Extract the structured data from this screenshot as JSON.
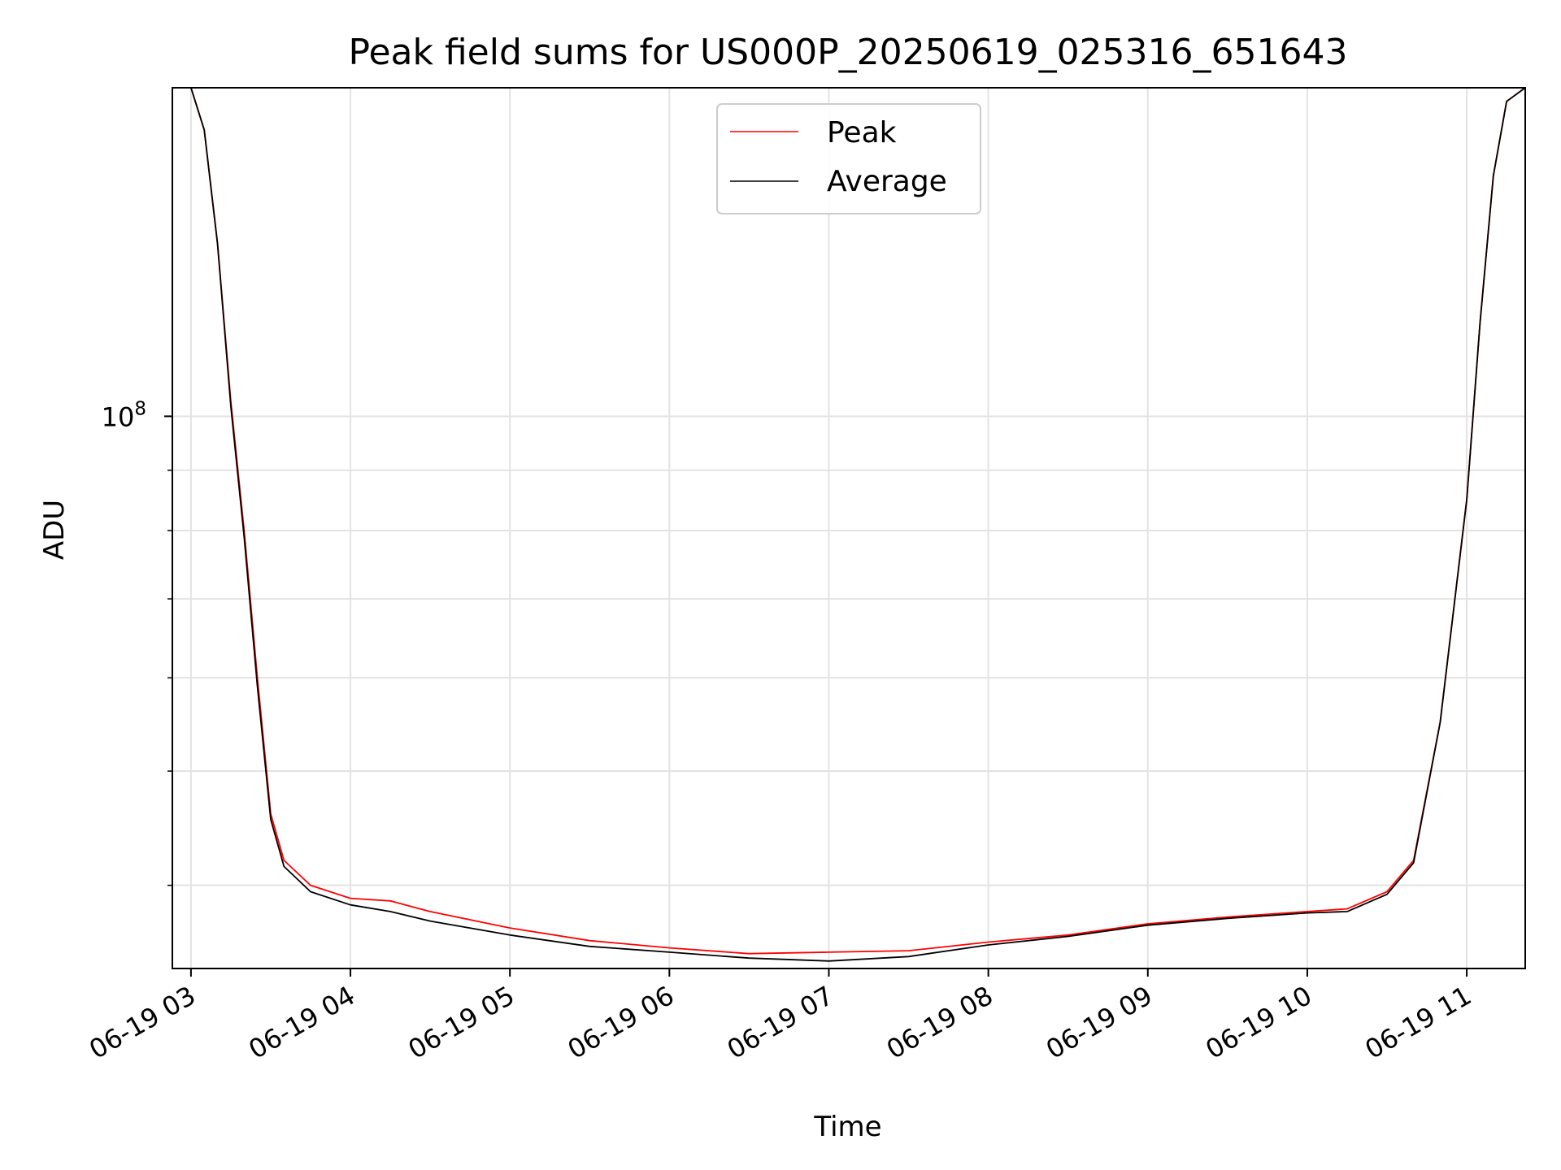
{
  "chart_data": {
    "type": "line",
    "title": "Peak field sums for US000P_20250619_025316_651643",
    "xlabel": "Time",
    "ylabel": "ADU",
    "y_scale": "log",
    "grid": true,
    "legend_position": "upper center",
    "xlim": [
      "2025-06-19 02:53",
      "2025-06-19 11:22"
    ],
    "ylim": [
      34000000,
      190000000
    ],
    "x_ticks": [
      "06-19 03",
      "06-19 04",
      "06-19 05",
      "06-19 06",
      "06-19 07",
      "06-19 08",
      "06-19 09",
      "06-19 10",
      "06-19 11"
    ],
    "y_tick_label": {
      "base": "10",
      "exponent": "8"
    },
    "series": [
      {
        "name": "Peak",
        "color": "#ff0000",
        "x": [
          "2025-06-19 02:53",
          "2025-06-19 03:00",
          "2025-06-19 03:05",
          "2025-06-19 03:10",
          "2025-06-19 03:15",
          "2025-06-19 03:20",
          "2025-06-19 03:25",
          "2025-06-19 03:30",
          "2025-06-19 03:35",
          "2025-06-19 03:45",
          "2025-06-19 04:00",
          "2025-06-19 04:15",
          "2025-06-19 04:30",
          "2025-06-19 05:00",
          "2025-06-19 05:30",
          "2025-06-19 06:00",
          "2025-06-19 06:30",
          "2025-06-19 07:00",
          "2025-06-19 07:30",
          "2025-06-19 08:00",
          "2025-06-19 08:30",
          "2025-06-19 09:00",
          "2025-06-19 09:30",
          "2025-06-19 10:00",
          "2025-06-19 10:15",
          "2025-06-19 10:30",
          "2025-06-19 10:40",
          "2025-06-19 10:50",
          "2025-06-19 11:00",
          "2025-06-19 11:05",
          "2025-06-19 11:10",
          "2025-06-19 11:15",
          "2025-06-19 11:22"
        ],
        "y": [
          190000000,
          190000000,
          175000000,
          140000000,
          103000000,
          80000000,
          60000000,
          46000000,
          42000000,
          40000000,
          39000000,
          38800000,
          38000000,
          36800000,
          35900000,
          35400000,
          35000000,
          35100000,
          35200000,
          35800000,
          36300000,
          37100000,
          37600000,
          38000000,
          38200000,
          39500000,
          42000000,
          55000000,
          85000000,
          120000000,
          160000000,
          185000000,
          190000000
        ]
      },
      {
        "name": "Average",
        "color": "#000000",
        "x": [
          "2025-06-19 02:53",
          "2025-06-19 03:00",
          "2025-06-19 03:05",
          "2025-06-19 03:10",
          "2025-06-19 03:15",
          "2025-06-19 03:20",
          "2025-06-19 03:25",
          "2025-06-19 03:30",
          "2025-06-19 03:35",
          "2025-06-19 03:45",
          "2025-06-19 04:00",
          "2025-06-19 04:15",
          "2025-06-19 04:30",
          "2025-06-19 05:00",
          "2025-06-19 05:30",
          "2025-06-19 06:00",
          "2025-06-19 06:30",
          "2025-06-19 07:00",
          "2025-06-19 07:30",
          "2025-06-19 08:00",
          "2025-06-19 08:30",
          "2025-06-19 09:00",
          "2025-06-19 09:30",
          "2025-06-19 10:00",
          "2025-06-19 10:15",
          "2025-06-19 10:30",
          "2025-06-19 10:40",
          "2025-06-19 10:50",
          "2025-06-19 11:00",
          "2025-06-19 11:05",
          "2025-06-19 11:10",
          "2025-06-19 11:15",
          "2025-06-19 11:22"
        ],
        "y": [
          190000000,
          190000000,
          175000000,
          140000000,
          102000000,
          79000000,
          59000000,
          45500000,
          41500000,
          39500000,
          38500000,
          38000000,
          37300000,
          36300000,
          35500000,
          35100000,
          34700000,
          34500000,
          34800000,
          35600000,
          36200000,
          37000000,
          37500000,
          37900000,
          38000000,
          39300000,
          41800000,
          55000000,
          85000000,
          120000000,
          160000000,
          185000000,
          190000000
        ]
      }
    ]
  }
}
